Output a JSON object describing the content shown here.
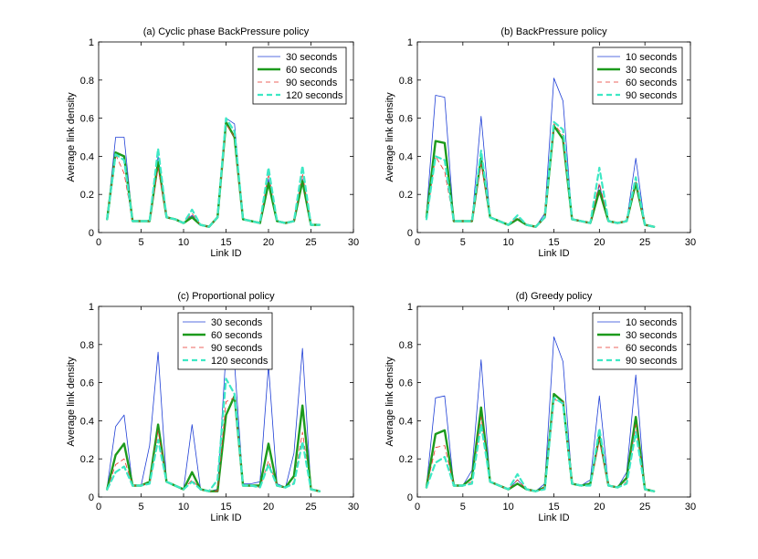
{
  "colors": {
    "s1": "#1f3fd6",
    "s2": "#1c9a1c",
    "s3": "#e8322b",
    "s4": "#3de8c4"
  },
  "chart_data": [
    {
      "type": "line",
      "title": "(a) Cyclic phase BackPressure policy",
      "xlabel": "Link ID",
      "ylabel": "Average link density",
      "xlim": [
        0,
        30
      ],
      "ylim": [
        0,
        1
      ],
      "xticks": [
        0,
        5,
        10,
        15,
        20,
        25,
        30
      ],
      "yticks": [
        0,
        0.2,
        0.4,
        0.6,
        0.8,
        1
      ],
      "ytick_labels": [
        "0",
        "0.2",
        "0.4",
        "0.6",
        "0.8",
        "1"
      ],
      "legend_position": "top-right",
      "x": [
        1,
        2,
        3,
        4,
        5,
        6,
        7,
        8,
        9,
        10,
        11,
        12,
        13,
        14,
        15,
        16,
        17,
        18,
        19,
        20,
        21,
        22,
        23,
        24,
        25,
        26
      ],
      "series": [
        {
          "name": "30 seconds",
          "style": "s1",
          "values": [
            0.07,
            0.5,
            0.5,
            0.06,
            0.06,
            0.06,
            0.4,
            0.08,
            0.07,
            0.05,
            0.09,
            0.04,
            0.03,
            0.08,
            0.6,
            0.57,
            0.07,
            0.06,
            0.05,
            0.28,
            0.06,
            0.05,
            0.06,
            0.28,
            0.04,
            0.04
          ]
        },
        {
          "name": "60 seconds",
          "style": "s2",
          "values": [
            0.07,
            0.42,
            0.4,
            0.06,
            0.06,
            0.06,
            0.37,
            0.08,
            0.07,
            0.05,
            0.08,
            0.04,
            0.03,
            0.08,
            0.58,
            0.5,
            0.07,
            0.06,
            0.05,
            0.26,
            0.06,
            0.05,
            0.06,
            0.27,
            0.04,
            0.04
          ]
        },
        {
          "name": "90 seconds",
          "style": "s3",
          "values": [
            0.07,
            0.41,
            0.31,
            0.06,
            0.06,
            0.06,
            0.34,
            0.08,
            0.07,
            0.05,
            0.1,
            0.04,
            0.03,
            0.08,
            0.57,
            0.5,
            0.07,
            0.06,
            0.05,
            0.31,
            0.06,
            0.05,
            0.06,
            0.31,
            0.04,
            0.04
          ]
        },
        {
          "name": "120 seconds",
          "style": "s4",
          "values": [
            0.07,
            0.41,
            0.38,
            0.06,
            0.06,
            0.06,
            0.44,
            0.08,
            0.07,
            0.05,
            0.12,
            0.04,
            0.03,
            0.08,
            0.6,
            0.53,
            0.07,
            0.06,
            0.05,
            0.34,
            0.06,
            0.05,
            0.06,
            0.35,
            0.04,
            0.04
          ]
        }
      ]
    },
    {
      "type": "line",
      "title": "(b) BackPressure policy",
      "xlabel": "Link ID",
      "ylabel": "Average link density",
      "xlim": [
        0,
        30
      ],
      "ylim": [
        0,
        1
      ],
      "xticks": [
        0,
        5,
        10,
        15,
        20,
        25,
        30
      ],
      "yticks": [
        0,
        0.2,
        0.4,
        0.6,
        0.8,
        1
      ],
      "ytick_labels": [
        "0",
        "0.2",
        "0.4",
        "0.6",
        "0.8",
        "1"
      ],
      "legend_position": "top-right",
      "x": [
        1,
        2,
        3,
        4,
        5,
        6,
        7,
        8,
        9,
        10,
        11,
        12,
        13,
        14,
        15,
        16,
        17,
        18,
        19,
        20,
        21,
        22,
        23,
        24,
        25,
        26
      ],
      "series": [
        {
          "name": "10 seconds",
          "style": "s1",
          "values": [
            0.1,
            0.72,
            0.71,
            0.06,
            0.06,
            0.06,
            0.61,
            0.08,
            0.06,
            0.04,
            0.07,
            0.04,
            0.03,
            0.1,
            0.81,
            0.69,
            0.07,
            0.06,
            0.05,
            0.25,
            0.06,
            0.05,
            0.06,
            0.39,
            0.04,
            0.03
          ]
        },
        {
          "name": "30 seconds",
          "style": "s2",
          "values": [
            0.08,
            0.48,
            0.47,
            0.06,
            0.06,
            0.06,
            0.39,
            0.08,
            0.06,
            0.04,
            0.07,
            0.04,
            0.03,
            0.08,
            0.56,
            0.49,
            0.07,
            0.06,
            0.05,
            0.22,
            0.06,
            0.05,
            0.06,
            0.26,
            0.04,
            0.03
          ]
        },
        {
          "name": "60 seconds",
          "style": "s3",
          "values": [
            0.07,
            0.4,
            0.32,
            0.06,
            0.06,
            0.06,
            0.36,
            0.08,
            0.06,
            0.04,
            0.08,
            0.04,
            0.03,
            0.08,
            0.57,
            0.51,
            0.07,
            0.06,
            0.05,
            0.26,
            0.06,
            0.05,
            0.06,
            0.27,
            0.04,
            0.03
          ]
        },
        {
          "name": "90 seconds",
          "style": "s4",
          "values": [
            0.07,
            0.4,
            0.38,
            0.06,
            0.06,
            0.06,
            0.43,
            0.08,
            0.06,
            0.04,
            0.09,
            0.04,
            0.03,
            0.08,
            0.58,
            0.54,
            0.07,
            0.06,
            0.05,
            0.34,
            0.06,
            0.05,
            0.06,
            0.29,
            0.04,
            0.03
          ]
        }
      ]
    },
    {
      "type": "line",
      "title": "(c) Proportional policy",
      "xlabel": "Link ID",
      "ylabel": "Average link density",
      "xlim": [
        0,
        30
      ],
      "ylim": [
        0,
        1
      ],
      "xticks": [
        0,
        5,
        10,
        15,
        20,
        25,
        30
      ],
      "yticks": [
        0,
        0.2,
        0.4,
        0.6,
        0.8,
        1
      ],
      "ytick_labels": [
        "0",
        "0.2",
        "0.4",
        "0.6",
        "0.8",
        "1"
      ],
      "legend_position": "top-center",
      "x": [
        1,
        2,
        3,
        4,
        5,
        6,
        7,
        8,
        9,
        10,
        11,
        12,
        13,
        14,
        15,
        16,
        17,
        18,
        19,
        20,
        21,
        22,
        23,
        24,
        25,
        26
      ],
      "series": [
        {
          "name": "30 seconds",
          "style": "s1",
          "values": [
            0.05,
            0.37,
            0.43,
            0.06,
            0.06,
            0.27,
            0.76,
            0.08,
            0.06,
            0.04,
            0.38,
            0.04,
            0.03,
            0.04,
            0.76,
            0.7,
            0.07,
            0.07,
            0.08,
            0.69,
            0.07,
            0.05,
            0.23,
            0.78,
            0.04,
            0.03
          ]
        },
        {
          "name": "60 seconds",
          "style": "s2",
          "values": [
            0.04,
            0.22,
            0.28,
            0.06,
            0.06,
            0.08,
            0.38,
            0.08,
            0.06,
            0.04,
            0.13,
            0.04,
            0.03,
            0.03,
            0.43,
            0.53,
            0.06,
            0.06,
            0.06,
            0.28,
            0.06,
            0.05,
            0.11,
            0.48,
            0.04,
            0.03
          ]
        },
        {
          "name": "90 seconds",
          "style": "s3",
          "values": [
            0.04,
            0.17,
            0.2,
            0.06,
            0.06,
            0.07,
            0.35,
            0.08,
            0.06,
            0.04,
            0.09,
            0.04,
            0.03,
            0.03,
            0.5,
            0.52,
            0.06,
            0.06,
            0.05,
            0.19,
            0.06,
            0.05,
            0.08,
            0.34,
            0.04,
            0.03
          ]
        },
        {
          "name": "120 seconds",
          "style": "s4",
          "values": [
            0.04,
            0.13,
            0.16,
            0.06,
            0.06,
            0.07,
            0.3,
            0.08,
            0.06,
            0.04,
            0.08,
            0.04,
            0.03,
            0.09,
            0.62,
            0.54,
            0.06,
            0.06,
            0.05,
            0.17,
            0.06,
            0.05,
            0.07,
            0.29,
            0.04,
            0.03
          ]
        }
      ]
    },
    {
      "type": "line",
      "title": "(d) Greedy policy",
      "xlabel": "Link ID",
      "ylabel": "Average link density",
      "xlim": [
        0,
        30
      ],
      "ylim": [
        0,
        1
      ],
      "xticks": [
        0,
        5,
        10,
        15,
        20,
        25,
        30
      ],
      "yticks": [
        0,
        0.2,
        0.4,
        0.6,
        0.8,
        1
      ],
      "ytick_labels": [
        "0",
        "0.2",
        "0.4",
        "0.6",
        "0.8",
        "1"
      ],
      "legend_position": "top-right",
      "x": [
        1,
        2,
        3,
        4,
        5,
        6,
        7,
        8,
        9,
        10,
        11,
        12,
        13,
        14,
        15,
        16,
        17,
        18,
        19,
        20,
        21,
        22,
        23,
        24,
        25,
        26
      ],
      "series": [
        {
          "name": "10 seconds",
          "style": "s1",
          "values": [
            0.06,
            0.52,
            0.53,
            0.06,
            0.06,
            0.14,
            0.72,
            0.08,
            0.06,
            0.04,
            0.09,
            0.04,
            0.03,
            0.07,
            0.84,
            0.71,
            0.07,
            0.06,
            0.09,
            0.53,
            0.06,
            0.05,
            0.13,
            0.64,
            0.04,
            0.03
          ]
        },
        {
          "name": "30 seconds",
          "style": "s2",
          "values": [
            0.05,
            0.33,
            0.35,
            0.06,
            0.06,
            0.1,
            0.47,
            0.08,
            0.06,
            0.04,
            0.07,
            0.04,
            0.03,
            0.05,
            0.54,
            0.5,
            0.07,
            0.06,
            0.07,
            0.32,
            0.06,
            0.05,
            0.1,
            0.42,
            0.04,
            0.03
          ]
        },
        {
          "name": "60 seconds",
          "style": "s3",
          "values": [
            0.05,
            0.26,
            0.27,
            0.06,
            0.06,
            0.08,
            0.42,
            0.08,
            0.06,
            0.04,
            0.09,
            0.04,
            0.03,
            0.05,
            0.51,
            0.5,
            0.07,
            0.06,
            0.06,
            0.3,
            0.06,
            0.05,
            0.08,
            0.38,
            0.04,
            0.03
          ]
        },
        {
          "name": "90 seconds",
          "style": "s4",
          "values": [
            0.05,
            0.18,
            0.21,
            0.06,
            0.06,
            0.07,
            0.38,
            0.08,
            0.06,
            0.04,
            0.12,
            0.04,
            0.03,
            0.04,
            0.52,
            0.49,
            0.07,
            0.06,
            0.06,
            0.36,
            0.06,
            0.05,
            0.07,
            0.34,
            0.04,
            0.03
          ]
        }
      ]
    }
  ]
}
